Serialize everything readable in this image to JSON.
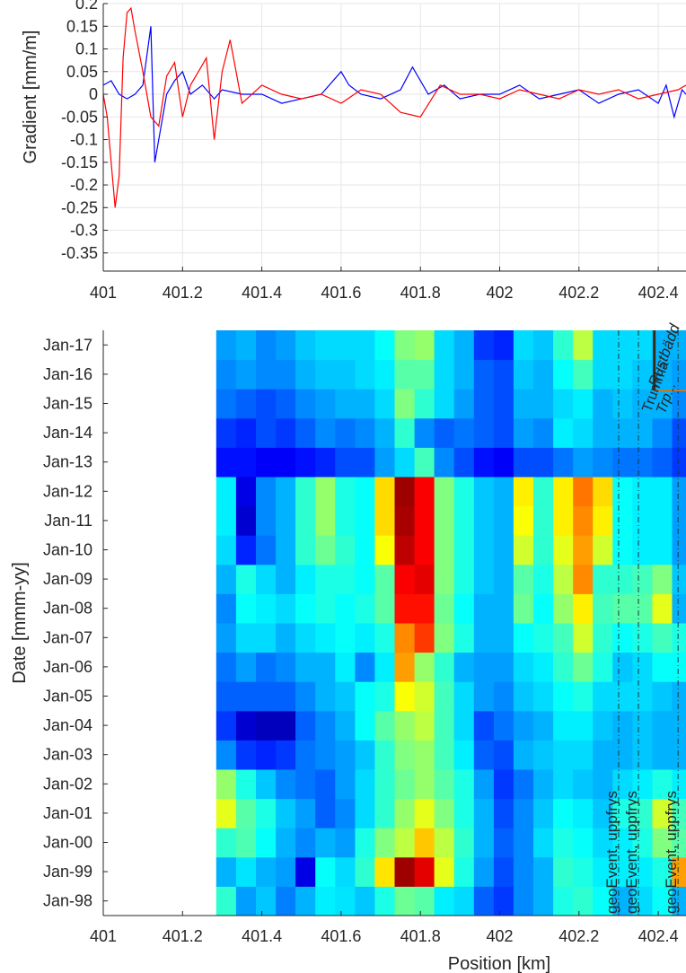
{
  "chart_data": [
    {
      "type": "line",
      "ylabel": "Gradient [mm/m]",
      "xlim": [
        401,
        402.47
      ],
      "ylim": [
        -0.39,
        0.2
      ],
      "xticks": [
        401,
        401.2,
        401.4,
        401.6,
        401.8,
        402,
        402.2,
        402.4
      ],
      "yticks": [
        0.2,
        0.15,
        0.1,
        0.05,
        0,
        -0.05,
        -0.1,
        -0.15,
        -0.2,
        -0.25,
        -0.3,
        -0.35
      ],
      "grid": true,
      "series": [
        {
          "color": "#0000ff",
          "x": [
            401.0,
            401.02,
            401.04,
            401.06,
            401.08,
            401.1,
            401.12,
            401.13,
            401.16,
            401.18,
            401.2,
            401.22,
            401.25,
            401.28,
            401.3,
            401.35,
            401.4,
            401.45,
            401.5,
            401.55,
            401.6,
            401.62,
            401.65,
            401.7,
            401.75,
            401.78,
            401.82,
            401.86,
            401.9,
            401.95,
            402.0,
            402.05,
            402.1,
            402.15,
            402.2,
            402.25,
            402.3,
            402.35,
            402.4,
            402.42,
            402.44,
            402.46,
            402.47
          ],
          "y": [
            0.02,
            0.03,
            0.0,
            -0.01,
            0.0,
            0.02,
            0.15,
            -0.15,
            0.0,
            0.03,
            0.05,
            0.0,
            0.02,
            -0.01,
            0.01,
            0.0,
            0.0,
            -0.02,
            -0.01,
            0.0,
            0.05,
            0.02,
            0.0,
            -0.01,
            0.01,
            0.06,
            0.0,
            0.02,
            -0.01,
            0.0,
            0.0,
            0.02,
            -0.01,
            0.0,
            0.01,
            -0.02,
            0.0,
            0.01,
            -0.02,
            0.02,
            -0.05,
            0.01,
            0.0
          ]
        },
        {
          "color": "#ff0000",
          "x": [
            401.0,
            401.01,
            401.03,
            401.04,
            401.05,
            401.06,
            401.07,
            401.08,
            401.1,
            401.12,
            401.14,
            401.16,
            401.18,
            401.2,
            401.22,
            401.24,
            401.26,
            401.28,
            401.3,
            401.32,
            401.35,
            401.4,
            401.45,
            401.5,
            401.55,
            401.6,
            401.65,
            401.7,
            401.75,
            401.8,
            401.85,
            401.9,
            401.95,
            402.0,
            402.05,
            402.1,
            402.15,
            402.2,
            402.25,
            402.3,
            402.35,
            402.4,
            402.45,
            402.47
          ],
          "y": [
            0.0,
            -0.05,
            -0.25,
            -0.18,
            0.08,
            0.18,
            0.19,
            0.14,
            0.05,
            -0.05,
            -0.07,
            0.04,
            0.07,
            -0.05,
            0.02,
            0.05,
            0.08,
            -0.1,
            0.05,
            0.12,
            -0.02,
            0.02,
            0.0,
            -0.01,
            0.0,
            -0.02,
            0.01,
            0.0,
            -0.04,
            -0.05,
            0.02,
            0.0,
            0.0,
            -0.01,
            0.01,
            0.0,
            -0.01,
            0.01,
            0.0,
            0.01,
            -0.01,
            0.0,
            0.01,
            0.02
          ]
        }
      ]
    },
    {
      "type": "heatmap",
      "xlabel": "Position [km]",
      "ylabel": "Date [mmm-yy]",
      "xlim": [
        401,
        402.47
      ],
      "xticks": [
        401,
        401.2,
        401.4,
        401.6,
        401.8,
        402,
        402.2,
        402.4
      ],
      "y_categories": [
        "Jan-98",
        "Jan-99",
        "Jan-00",
        "Jan-01",
        "Jan-02",
        "Jan-03",
        "Jan-04",
        "Jan-05",
        "Jan-06",
        "Jan-07",
        "Jan-08",
        "Jan-09",
        "Jan-10",
        "Jan-11",
        "Jan-12",
        "Jan-13",
        "Jan-14",
        "Jan-15",
        "Jan-16",
        "Jan-17"
      ],
      "columns_x": [
        401.31,
        401.36,
        401.41,
        401.46,
        401.51,
        401.56,
        401.61,
        401.66,
        401.71,
        401.76,
        401.81,
        401.86,
        401.91,
        401.96,
        402.01,
        402.06,
        402.11,
        402.16,
        402.21,
        402.26,
        402.31,
        402.36,
        402.41,
        402.46
      ],
      "colormap": "jet",
      "matrix": [
        [
          0.42,
          0.28,
          0.32,
          0.25,
          0.3,
          0.36,
          0.35,
          0.32,
          0.4,
          0.48,
          0.46,
          0.36,
          0.34,
          0.22,
          0.18,
          0.26,
          0.3,
          0.4,
          0.42,
          0.38,
          0.3,
          0.34,
          0.38,
          0.3
        ],
        [
          0.3,
          0.35,
          0.3,
          0.28,
          0.1,
          0.38,
          0.34,
          0.42,
          0.65,
          0.97,
          0.9,
          0.6,
          0.4,
          0.28,
          0.2,
          0.26,
          0.3,
          0.42,
          0.4,
          0.36,
          0.36,
          0.36,
          0.4,
          0.72
        ],
        [
          0.42,
          0.45,
          0.38,
          0.3,
          0.26,
          0.3,
          0.28,
          0.4,
          0.5,
          0.56,
          0.68,
          0.56,
          0.42,
          0.3,
          0.22,
          0.26,
          0.34,
          0.4,
          0.38,
          0.34,
          0.36,
          0.4,
          0.5,
          0.46
        ],
        [
          0.6,
          0.46,
          0.4,
          0.32,
          0.28,
          0.22,
          0.26,
          0.34,
          0.42,
          0.52,
          0.6,
          0.5,
          0.4,
          0.3,
          0.2,
          0.26,
          0.32,
          0.38,
          0.36,
          0.32,
          0.4,
          0.42,
          0.58,
          0.44
        ],
        [
          0.52,
          0.4,
          0.32,
          0.26,
          0.24,
          0.22,
          0.28,
          0.34,
          0.42,
          0.48,
          0.52,
          0.46,
          0.4,
          0.28,
          0.18,
          0.24,
          0.3,
          0.34,
          0.32,
          0.3,
          0.34,
          0.36,
          0.4,
          0.36
        ],
        [
          0.26,
          0.18,
          0.16,
          0.18,
          0.24,
          0.26,
          0.28,
          0.32,
          0.42,
          0.5,
          0.52,
          0.44,
          0.36,
          0.22,
          0.2,
          0.3,
          0.32,
          0.34,
          0.34,
          0.3,
          0.3,
          0.32,
          0.3,
          0.3
        ],
        [
          0.18,
          0.08,
          0.06,
          0.06,
          0.22,
          0.26,
          0.3,
          0.38,
          0.46,
          0.52,
          0.56,
          0.44,
          0.34,
          0.2,
          0.24,
          0.28,
          0.3,
          0.36,
          0.36,
          0.32,
          0.3,
          0.32,
          0.3,
          0.3
        ],
        [
          0.22,
          0.22,
          0.22,
          0.22,
          0.26,
          0.3,
          0.32,
          0.38,
          0.4,
          0.62,
          0.58,
          0.44,
          0.34,
          0.28,
          0.26,
          0.32,
          0.34,
          0.38,
          0.4,
          0.34,
          0.34,
          0.34,
          0.32,
          0.3
        ],
        [
          0.24,
          0.28,
          0.24,
          0.26,
          0.3,
          0.3,
          0.36,
          0.26,
          0.36,
          0.72,
          0.52,
          0.42,
          0.3,
          0.28,
          0.28,
          0.34,
          0.36,
          0.42,
          0.48,
          0.4,
          0.32,
          0.34,
          0.38,
          0.38
        ],
        [
          0.28,
          0.34,
          0.34,
          0.3,
          0.34,
          0.36,
          0.38,
          0.36,
          0.4,
          0.74,
          0.82,
          0.5,
          0.4,
          0.3,
          0.3,
          0.38,
          0.4,
          0.44,
          0.58,
          0.42,
          0.38,
          0.4,
          0.44,
          0.4
        ],
        [
          0.26,
          0.38,
          0.36,
          0.34,
          0.38,
          0.4,
          0.38,
          0.4,
          0.46,
          0.86,
          0.86,
          0.48,
          0.38,
          0.3,
          0.3,
          0.48,
          0.38,
          0.52,
          0.64,
          0.44,
          0.46,
          0.46,
          0.6,
          0.3
        ],
        [
          0.3,
          0.4,
          0.34,
          0.3,
          0.36,
          0.4,
          0.4,
          0.38,
          0.46,
          0.88,
          0.9,
          0.5,
          0.4,
          0.32,
          0.3,
          0.46,
          0.4,
          0.56,
          0.74,
          0.42,
          0.42,
          0.44,
          0.5,
          0.32
        ],
        [
          0.34,
          0.16,
          0.24,
          0.3,
          0.42,
          0.48,
          0.42,
          0.38,
          0.62,
          0.94,
          0.88,
          0.5,
          0.4,
          0.32,
          0.3,
          0.58,
          0.42,
          0.6,
          0.72,
          0.58,
          0.38,
          0.36,
          0.36,
          0.28
        ],
        [
          0.36,
          0.08,
          0.26,
          0.3,
          0.42,
          0.52,
          0.4,
          0.38,
          0.66,
          0.96,
          0.88,
          0.5,
          0.4,
          0.32,
          0.3,
          0.62,
          0.42,
          0.64,
          0.74,
          0.64,
          0.38,
          0.36,
          0.36,
          0.28
        ],
        [
          0.36,
          0.1,
          0.26,
          0.3,
          0.42,
          0.52,
          0.4,
          0.38,
          0.66,
          0.97,
          0.88,
          0.5,
          0.4,
          0.32,
          0.3,
          0.64,
          0.42,
          0.64,
          0.76,
          0.66,
          0.38,
          0.36,
          0.36,
          0.28
        ],
        [
          0.14,
          0.14,
          0.12,
          0.12,
          0.14,
          0.16,
          0.2,
          0.2,
          0.28,
          0.34,
          0.44,
          0.26,
          0.2,
          0.14,
          0.12,
          0.2,
          0.2,
          0.24,
          0.28,
          0.26,
          0.24,
          0.24,
          0.22,
          0.18
        ],
        [
          0.18,
          0.16,
          0.2,
          0.18,
          0.22,
          0.26,
          0.24,
          0.26,
          0.3,
          0.42,
          0.26,
          0.22,
          0.24,
          0.22,
          0.2,
          0.28,
          0.26,
          0.36,
          0.34,
          0.3,
          0.3,
          0.3,
          0.26,
          0.2
        ],
        [
          0.24,
          0.22,
          0.2,
          0.22,
          0.26,
          0.28,
          0.3,
          0.3,
          0.34,
          0.5,
          0.42,
          0.34,
          0.28,
          0.22,
          0.2,
          0.3,
          0.3,
          0.34,
          0.36,
          0.3,
          0.32,
          0.3,
          0.3,
          0.26
        ],
        [
          0.26,
          0.28,
          0.26,
          0.26,
          0.3,
          0.32,
          0.32,
          0.34,
          0.36,
          0.46,
          0.46,
          0.34,
          0.3,
          0.22,
          0.2,
          0.32,
          0.3,
          0.38,
          0.44,
          0.34,
          0.34,
          0.32,
          0.3,
          0.28
        ],
        [
          0.28,
          0.3,
          0.26,
          0.28,
          0.32,
          0.34,
          0.34,
          0.34,
          0.38,
          0.5,
          0.52,
          0.34,
          0.3,
          0.18,
          0.16,
          0.34,
          0.32,
          0.42,
          0.56,
          0.34,
          0.34,
          0.34,
          0.3,
          0.3
        ]
      ],
      "event_lines": [
        402.3,
        402.35,
        402.45
      ],
      "annotations": [
        {
          "text": "geoEvent, uppfrys",
          "x": 402.3
        },
        {
          "text": "geoEvent, uppfrys",
          "x": 402.35
        },
        {
          "text": "geoEvent, uppfrys",
          "x": 402.45
        },
        {
          "text": "Trumma",
          "x": 402.39
        },
        {
          "text": "Rustbädd",
          "x": 402.43
        },
        {
          "text": "Trp...",
          "x": 402.43
        }
      ],
      "grid": false
    }
  ]
}
